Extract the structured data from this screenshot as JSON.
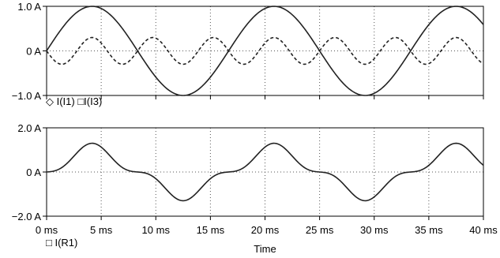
{
  "chart_data": [
    {
      "type": "line",
      "title": "",
      "xlabel": "",
      "ylabel": "",
      "xlim": [
        0,
        40
      ],
      "ylim": [
        -1,
        1
      ],
      "yticks": [
        {
          "value": 1,
          "label": "1.0 A"
        },
        {
          "value": 0,
          "label": "0 A"
        },
        {
          "value": -1,
          "label": "−1.0 A"
        }
      ],
      "grid": true,
      "legend": [
        "◇ I(I1)",
        "□I(I3)"
      ],
      "series": [
        {
          "name": "I(I1)",
          "style": "solid",
          "amplitude": 1.0,
          "frequency_hz": 60,
          "x": [
            0,
            2,
            4.17,
            6,
            8.33,
            10,
            12.5,
            14,
            16.67,
            18,
            20.83,
            23,
            25,
            27,
            29.17,
            31,
            33.33,
            35,
            37.5,
            40
          ],
          "y": [
            0,
            0.68,
            1.0,
            0.81,
            0,
            -0.59,
            -1.0,
            -0.81,
            0,
            0.48,
            1.0,
            0.73,
            0,
            -0.68,
            -1.0,
            -0.77,
            0,
            0.59,
            1.0,
            0.59
          ]
        },
        {
          "name": "I(I3)",
          "style": "dashed",
          "amplitude": 0.3,
          "frequency_hz": 180,
          "x": [
            0,
            1.39,
            2.78,
            4.17,
            5.56,
            6.94,
            8.33,
            9.72,
            11.11,
            12.5,
            13.89,
            15.28,
            16.67,
            18.06,
            19.44,
            20.83,
            22.22,
            23.61,
            25,
            26.39,
            27.78,
            29.17,
            30.56,
            31.94,
            33.33,
            34.72,
            36.11,
            37.5,
            38.89,
            40
          ],
          "y": [
            0,
            -0.3,
            0,
            0.3,
            0,
            -0.3,
            0,
            0.3,
            0,
            -0.3,
            0,
            0.3,
            0,
            -0.3,
            0,
            0.3,
            0,
            -0.3,
            0,
            0.3,
            0,
            -0.3,
            0,
            0.3,
            0,
            -0.3,
            0,
            0.3,
            0,
            -0.26
          ]
        }
      ]
    },
    {
      "type": "line",
      "title": "",
      "xlabel": "Time",
      "ylabel": "",
      "xlim": [
        0,
        40
      ],
      "ylim": [
        -2,
        2
      ],
      "xticks": [
        {
          "value": 0,
          "label": "0 ms"
        },
        {
          "value": 5,
          "label": "5 ms"
        },
        {
          "value": 10,
          "label": "10 ms"
        },
        {
          "value": 15,
          "label": "15 ms"
        },
        {
          "value": 20,
          "label": "20 ms"
        },
        {
          "value": 25,
          "label": "25 ms"
        },
        {
          "value": 30,
          "label": "30 ms"
        },
        {
          "value": 35,
          "label": "35 ms"
        },
        {
          "value": 40,
          "label": "40 ms"
        }
      ],
      "yticks": [
        {
          "value": 2,
          "label": "2.0 A"
        },
        {
          "value": 0,
          "label": "0 A"
        },
        {
          "value": -2,
          "label": "−2.0 A"
        }
      ],
      "grid": true,
      "legend": [
        "□ I(R1)"
      ],
      "series": [
        {
          "name": "I(R1)",
          "style": "solid",
          "x": [
            0,
            1,
            2,
            3,
            4.17,
            5,
            6,
            7,
            8.33,
            9,
            10,
            11,
            12.5,
            13,
            14,
            15,
            16.67,
            18,
            19,
            20,
            20.83,
            22,
            23,
            24,
            25,
            26,
            27,
            28,
            29.17,
            30,
            31,
            32,
            33.33,
            34,
            35,
            36,
            37.5,
            38,
            39,
            40
          ],
          "y": [
            0,
            0.14,
            0.47,
            0.92,
            1.3,
            1.13,
            0.62,
            0.23,
            0,
            -0.06,
            -0.3,
            -0.73,
            -1.3,
            -1.22,
            -0.85,
            -0.44,
            0,
            0.19,
            0.55,
            1.02,
            1.3,
            1.14,
            0.64,
            0.25,
            0,
            -0.05,
            -0.31,
            -0.74,
            -1.3,
            -1.21,
            -0.83,
            -0.42,
            0,
            0.15,
            0.58,
            1.03,
            1.3,
            1.26,
            0.86,
            0.33
          ]
        }
      ]
    }
  ]
}
